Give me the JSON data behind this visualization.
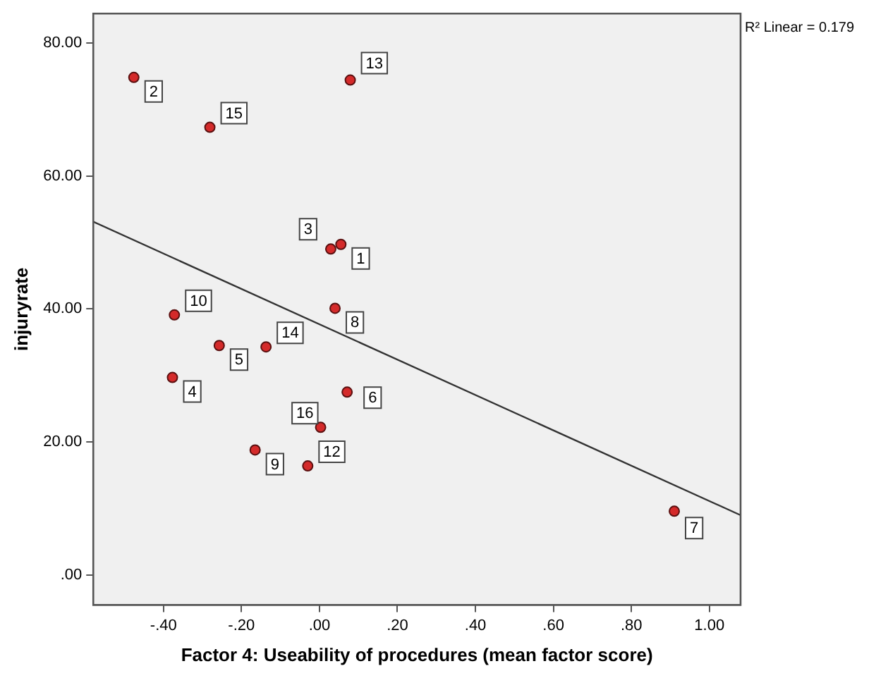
{
  "chart_data": {
    "type": "scatter",
    "xlabel": "Factor 4: Useability of procedures (mean factor score)",
    "ylabel": "injuryrate",
    "annotations": [
      "R² Linear = 0.179",
      {
        "text": "1",
        "x": 0.055,
        "y": 49.7
      },
      {
        "text": "2",
        "x": -0.476,
        "y": 74.8
      },
      {
        "text": "3",
        "x": 0.029,
        "y": 49.0
      },
      {
        "text": "4",
        "x": -0.377,
        "y": 29.7
      },
      {
        "text": "5",
        "x": -0.257,
        "y": 34.5
      },
      {
        "text": "6",
        "x": 0.071,
        "y": 27.5
      },
      {
        "text": "7",
        "x": 0.91,
        "y": 9.6
      },
      {
        "text": "8",
        "x": 0.04,
        "y": 40.1
      },
      {
        "text": "9",
        "x": -0.165,
        "y": 18.8
      },
      {
        "text": "10",
        "x": -0.372,
        "y": 39.1
      },
      {
        "text": "12",
        "x": -0.03,
        "y": 16.4
      },
      {
        "text": "13",
        "x": 0.079,
        "y": 74.4
      },
      {
        "text": "14",
        "x": -0.137,
        "y": 34.3
      },
      {
        "text": "15",
        "x": -0.281,
        "y": 67.3
      },
      {
        "text": "16",
        "x": 0.003,
        "y": 22.2
      }
    ],
    "xlim": [
      -0.58,
      1.08
    ],
    "ylim": [
      -4.5,
      84.4
    ],
    "xticks": [
      {
        "value": -0.4,
        "label": "-.40"
      },
      {
        "value": -0.2,
        "label": "-.20"
      },
      {
        "value": 0,
        "label": ".00"
      },
      {
        "value": 0.2,
        "label": ".20"
      },
      {
        "value": 0.4,
        "label": ".40"
      },
      {
        "value": 0.6,
        "label": ".60"
      },
      {
        "value": 0.8,
        "label": ".80"
      },
      {
        "value": 1,
        "label": "1.00"
      }
    ],
    "yticks": [
      {
        "value": 0,
        "label": ".00"
      },
      {
        "value": 20,
        "label": "20.00"
      },
      {
        "value": 40,
        "label": "40.00"
      },
      {
        "value": 60,
        "label": "60.00"
      },
      {
        "value": 80,
        "label": "80.00"
      }
    ],
    "grid": false,
    "legend": false,
    "series": [
      {
        "color": "#d42a2a",
        "marker": "circle",
        "x": [
          0.055,
          -0.476,
          0.029,
          -0.377,
          -0.257,
          0.071,
          0.91,
          0.04,
          -0.165,
          -0.372,
          -0.03,
          0.079,
          -0.137,
          -0.281,
          0.003
        ],
        "values": [
          49.7,
          74.8,
          49.0,
          29.7,
          34.5,
          27.5,
          9.6,
          40.1,
          18.8,
          39.1,
          16.4,
          74.4,
          34.3,
          67.3,
          22.2
        ]
      },
      {
        "type": "line",
        "color": "#333333",
        "marker": "none",
        "x": [
          -0.58,
          1.08
        ],
        "values": [
          53.1,
          9.0
        ]
      }
    ]
  }
}
